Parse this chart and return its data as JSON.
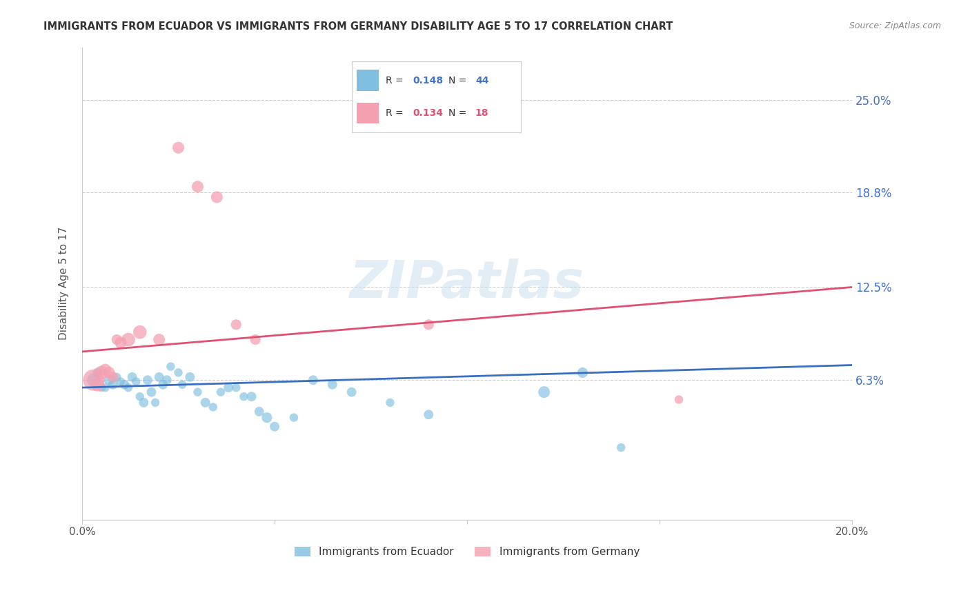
{
  "title": "IMMIGRANTS FROM ECUADOR VS IMMIGRANTS FROM GERMANY DISABILITY AGE 5 TO 17 CORRELATION CHART",
  "source": "Source: ZipAtlas.com",
  "ylabel": "Disability Age 5 to 17",
  "ytick_labels": [
    "25.0%",
    "18.8%",
    "12.5%",
    "6.3%"
  ],
  "ytick_values": [
    0.25,
    0.188,
    0.125,
    0.063
  ],
  "xlim": [
    0.0,
    0.2
  ],
  "ylim": [
    -0.03,
    0.285
  ],
  "watermark": "ZIPatlas",
  "ecuador_color": "#7fbfdf",
  "germany_color": "#f4a0b0",
  "ecuador_line_color": "#3a6fbf",
  "germany_line_color": "#e05070",
  "ecuador_points": [
    [
      0.003,
      0.063
    ],
    [
      0.004,
      0.068
    ],
    [
      0.005,
      0.058
    ],
    [
      0.006,
      0.058
    ],
    [
      0.007,
      0.063
    ],
    [
      0.008,
      0.06
    ],
    [
      0.009,
      0.065
    ],
    [
      0.01,
      0.062
    ],
    [
      0.011,
      0.06
    ],
    [
      0.012,
      0.058
    ],
    [
      0.013,
      0.065
    ],
    [
      0.014,
      0.062
    ],
    [
      0.015,
      0.052
    ],
    [
      0.016,
      0.048
    ],
    [
      0.017,
      0.063
    ],
    [
      0.018,
      0.055
    ],
    [
      0.019,
      0.048
    ],
    [
      0.02,
      0.065
    ],
    [
      0.021,
      0.06
    ],
    [
      0.022,
      0.063
    ],
    [
      0.023,
      0.072
    ],
    [
      0.025,
      0.068
    ],
    [
      0.026,
      0.06
    ],
    [
      0.028,
      0.065
    ],
    [
      0.03,
      0.055
    ],
    [
      0.032,
      0.048
    ],
    [
      0.034,
      0.045
    ],
    [
      0.036,
      0.055
    ],
    [
      0.038,
      0.058
    ],
    [
      0.04,
      0.058
    ],
    [
      0.042,
      0.052
    ],
    [
      0.044,
      0.052
    ],
    [
      0.046,
      0.042
    ],
    [
      0.048,
      0.038
    ],
    [
      0.05,
      0.032
    ],
    [
      0.055,
      0.038
    ],
    [
      0.06,
      0.063
    ],
    [
      0.065,
      0.06
    ],
    [
      0.07,
      0.055
    ],
    [
      0.08,
      0.048
    ],
    [
      0.09,
      0.04
    ],
    [
      0.12,
      0.055
    ],
    [
      0.13,
      0.068
    ],
    [
      0.14,
      0.018
    ]
  ],
  "germany_points": [
    [
      0.003,
      0.063
    ],
    [
      0.004,
      0.06
    ],
    [
      0.005,
      0.068
    ],
    [
      0.006,
      0.07
    ],
    [
      0.007,
      0.068
    ],
    [
      0.008,
      0.065
    ],
    [
      0.009,
      0.09
    ],
    [
      0.01,
      0.088
    ],
    [
      0.012,
      0.09
    ],
    [
      0.015,
      0.095
    ],
    [
      0.02,
      0.09
    ],
    [
      0.025,
      0.218
    ],
    [
      0.03,
      0.192
    ],
    [
      0.035,
      0.185
    ],
    [
      0.04,
      0.1
    ],
    [
      0.045,
      0.09
    ],
    [
      0.09,
      0.1
    ],
    [
      0.155,
      0.05
    ]
  ],
  "ecuador_sizes": [
    200,
    100,
    80,
    80,
    120,
    100,
    80,
    80,
    100,
    80,
    100,
    80,
    80,
    100,
    100,
    100,
    80,
    100,
    100,
    100,
    80,
    80,
    80,
    100,
    80,
    100,
    80,
    80,
    100,
    80,
    80,
    100,
    100,
    120,
    100,
    80,
    100,
    100,
    100,
    80,
    100,
    150,
    120,
    80
  ],
  "germany_sizes": [
    500,
    200,
    200,
    150,
    150,
    120,
    120,
    150,
    200,
    200,
    150,
    150,
    150,
    150,
    120,
    120,
    120,
    80
  ],
  "ecuador_line": {
    "x0": 0.0,
    "y0": 0.058,
    "x1": 0.2,
    "y1": 0.073
  },
  "germany_line": {
    "x0": 0.0,
    "y0": 0.082,
    "x1": 0.2,
    "y1": 0.125
  }
}
